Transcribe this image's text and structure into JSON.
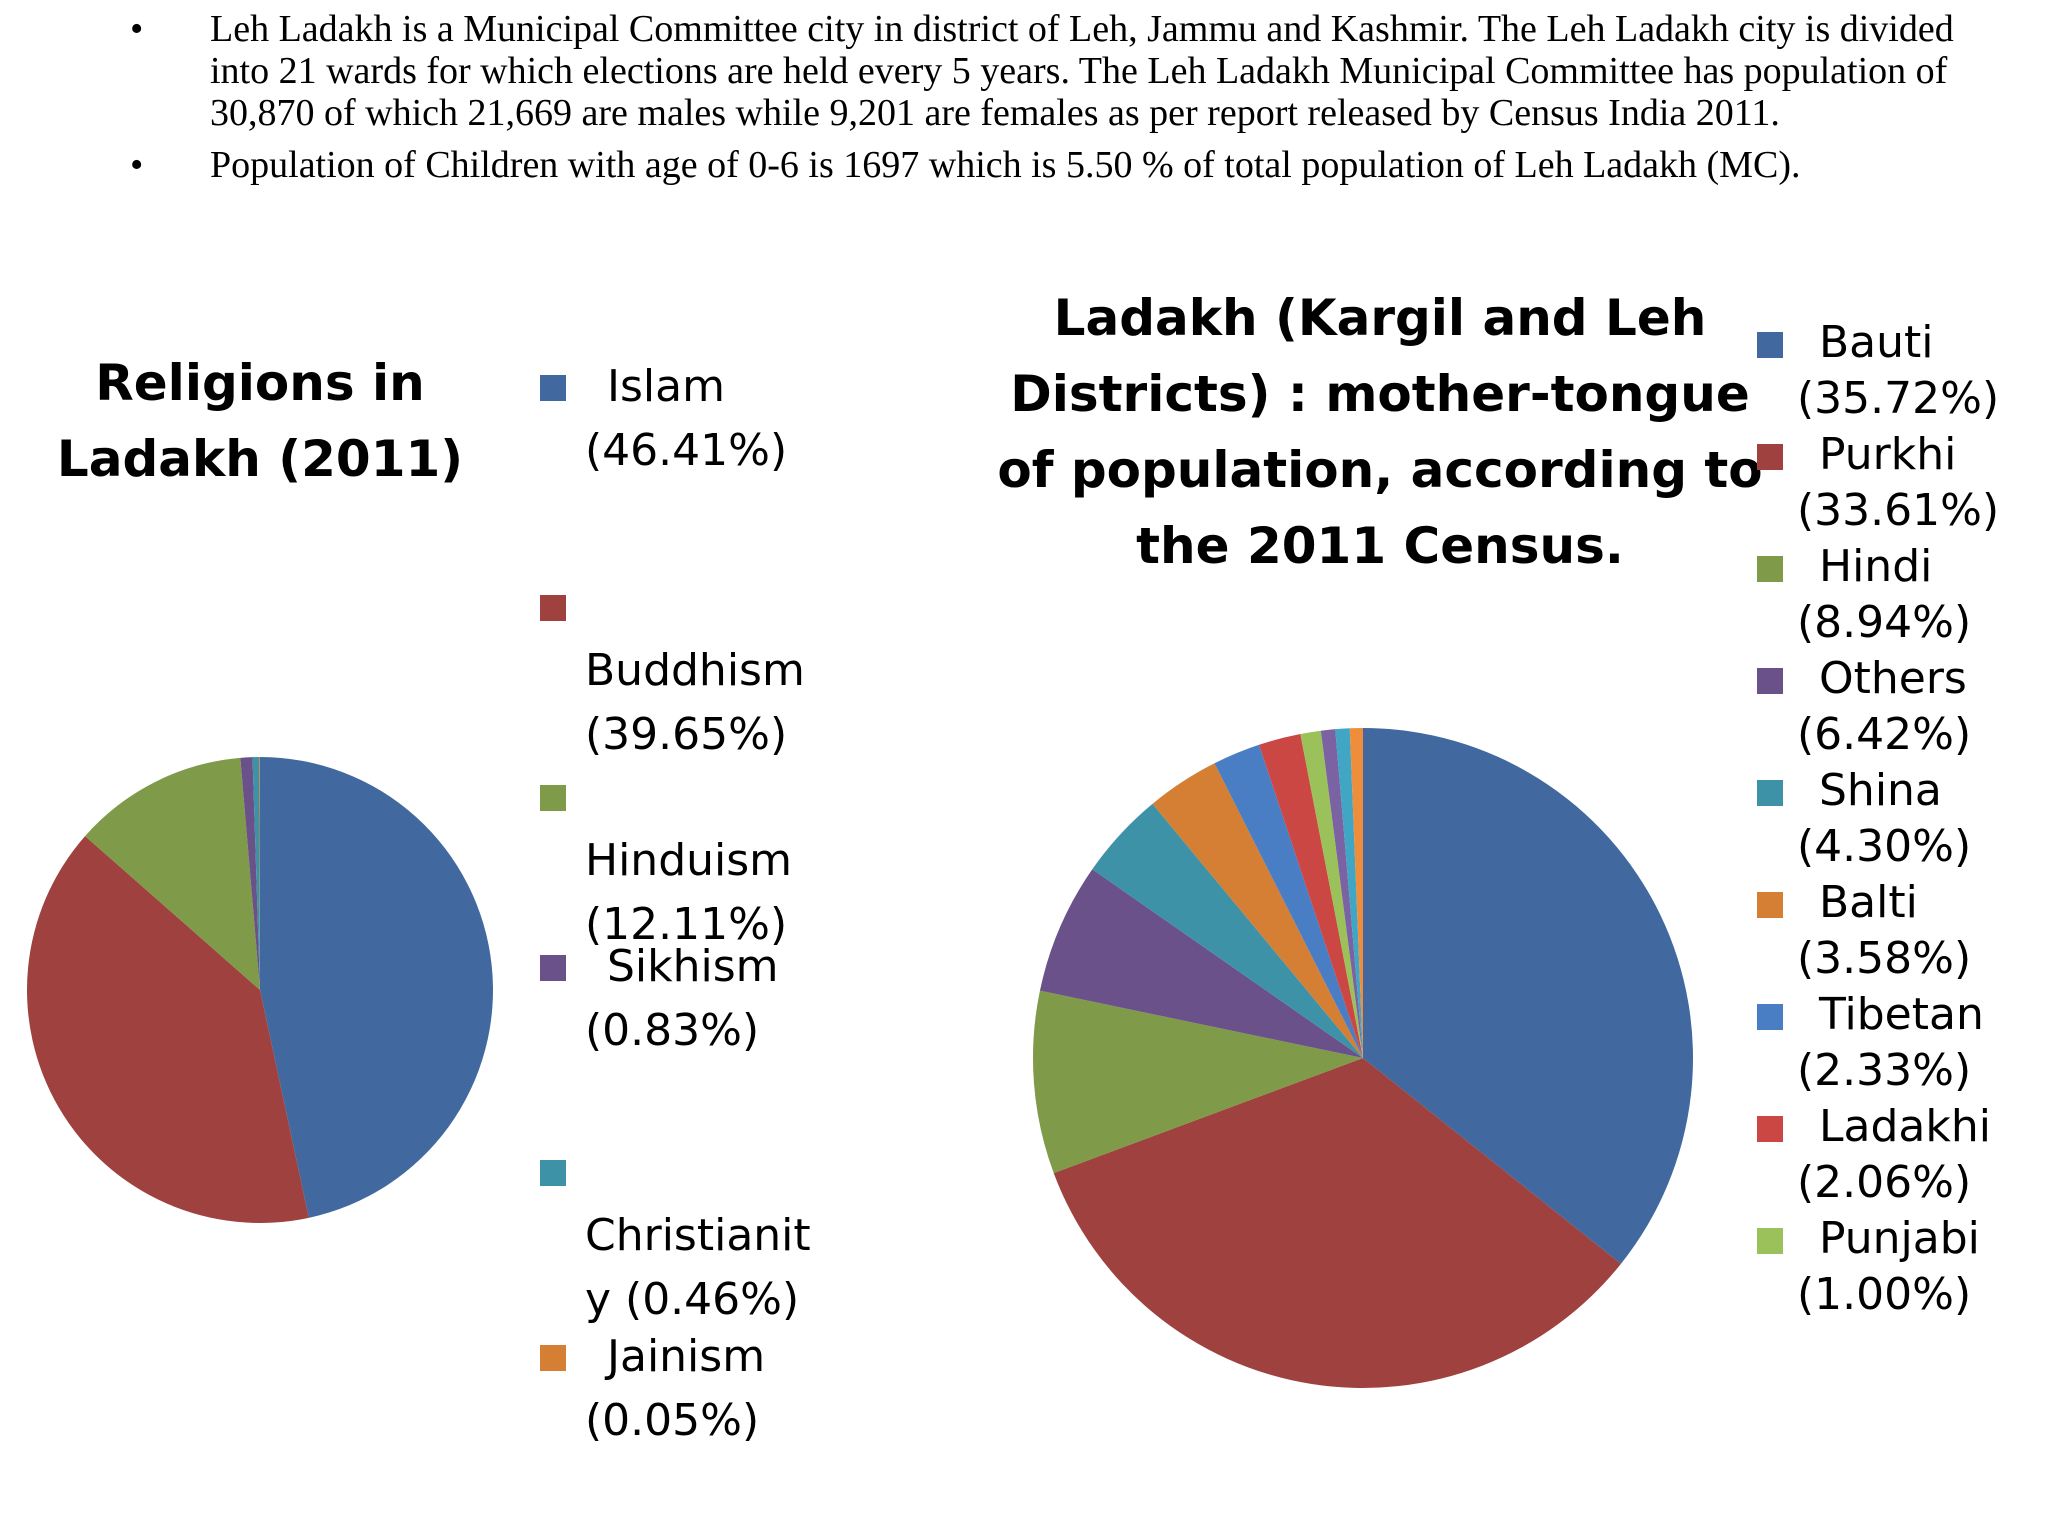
{
  "bullets": [
    {
      "symbol": "•",
      "text": "Leh Ladakh is a Municipal Committee city in district of Leh, Jammu and Kashmir. The Leh Ladakh city is divided into 21 wards for which elections are held every 5 years. The Leh Ladakh Municipal Committee has population of 30,870 of which 21,669 are males while 9,201 are females as per report released by Census India 2011."
    },
    {
      "symbol": "•",
      "text": "Population of Children with age of 0-6 is 1697 which is 5.50 % of total population of Leh Ladakh (MC)."
    }
  ],
  "chart_data": [
    {
      "type": "pie",
      "title": "Religions in Ladakh (2011)",
      "legend_position": "right",
      "categories": [
        "Islam",
        "Buddhism",
        "Hinduism",
        "Sikhism",
        "Christianity",
        "Jainism"
      ],
      "values": [
        46.41,
        39.65,
        12.11,
        0.83,
        0.46,
        0.05
      ],
      "labels": [
        "Islam (46.41%)",
        "Buddhism (39.65%)",
        "Hinduism (12.11%)",
        "Sikhism (0.83%)",
        "Christianity (0.46%)",
        "Jainism (0.05%)"
      ],
      "legend": [
        {
          "name": "Islam",
          "pct": "(46.41%)"
        },
        {
          "name": "Buddhism",
          "pct": "(39.65%)"
        },
        {
          "name": "Hinduism",
          "pct": "(12.11%)"
        },
        {
          "name": "Sikhism",
          "pct": "(0.83%)"
        },
        {
          "name": "Christianit",
          "pct": "y (0.46%)"
        },
        {
          "name": "Jainism",
          "pct": "(0.05%)"
        }
      ],
      "colors": [
        "#4169A0",
        "#9E413F",
        "#7F9A48",
        "#6A5189",
        "#3D92A8",
        "#D57F34"
      ]
    },
    {
      "type": "pie",
      "title": "Ladakh (Kargil and Leh Districts) : mother-tongue of population, according to the 2011 Census.",
      "legend_position": "right",
      "categories": [
        "Bauti",
        "Purkhi",
        "Hindi",
        "Others",
        "Shina",
        "Balti",
        "Tibetan",
        "Ladakhi",
        "Punjabi",
        "Unlabeled 1",
        "Unlabeled 2",
        "Unlabeled 3"
      ],
      "values": [
        35.72,
        33.61,
        8.94,
        6.42,
        4.3,
        3.58,
        2.33,
        2.06,
        1.0,
        0.7,
        0.7,
        0.64
      ],
      "legend": [
        {
          "name": "Bauti",
          "pct": "(35.72%)"
        },
        {
          "name": "Purkhi",
          "pct": "(33.61%)"
        },
        {
          "name": "Hindi",
          "pct": "(8.94%)"
        },
        {
          "name": "Others",
          "pct": "(6.42%)"
        },
        {
          "name": "Shina",
          "pct": "(4.30%)"
        },
        {
          "name": "Balti",
          "pct": "(3.58%)"
        },
        {
          "name": "Tibetan",
          "pct": "(2.33%)"
        },
        {
          "name": "Ladakhi",
          "pct": "(2.06%)"
        },
        {
          "name": "Punjabi",
          "pct": "(1.00%)"
        }
      ],
      "colors": [
        "#4169A0",
        "#9E413F",
        "#7F9A48",
        "#6A5189",
        "#3D92A8",
        "#D57F34",
        "#4A7EC4",
        "#CB4744",
        "#9BC25A",
        "#7B62A2",
        "#41A6C4",
        "#EE8D3C"
      ]
    }
  ]
}
